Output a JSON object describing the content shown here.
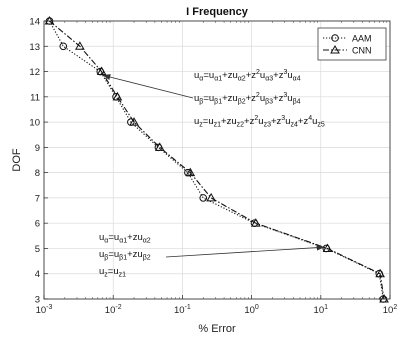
{
  "chart_data": {
    "type": "line",
    "title": "I Frequency",
    "xlabel": "% Error",
    "ylabel": "DOF",
    "xscale": "log",
    "xlim": [
      0.001,
      100
    ],
    "ylim": [
      3,
      14
    ],
    "x_ticks": [
      {
        "value": 0.001,
        "base": "10",
        "exp": "-3"
      },
      {
        "value": 0.01,
        "base": "10",
        "exp": "-2"
      },
      {
        "value": 0.1,
        "base": "10",
        "exp": "-1"
      },
      {
        "value": 1,
        "base": "10",
        "exp": "0"
      },
      {
        "value": 10,
        "base": "10",
        "exp": "1"
      },
      {
        "value": 100,
        "base": "10",
        "exp": "2"
      }
    ],
    "y_ticks": [
      "3",
      "4",
      "5",
      "6",
      "7",
      "8",
      "9",
      "10",
      "11",
      "12",
      "13",
      "14"
    ],
    "grid": true,
    "legend": "top-right",
    "series": [
      {
        "name": "AAM",
        "marker": "circle",
        "style": "dotted",
        "x": [
          0.0012,
          0.0019,
          0.0065,
          0.011,
          0.018,
          0.045,
          0.12,
          0.2,
          1.1,
          12,
          70,
          80
        ],
        "y": [
          14,
          13,
          12,
          11,
          10,
          9,
          8,
          7,
          6,
          5,
          4,
          3
        ]
      },
      {
        "name": "CNN",
        "marker": "triangle",
        "style": "dashdot",
        "x": [
          0.0012,
          0.0033,
          0.0068,
          0.0115,
          0.02,
          0.047,
          0.13,
          0.26,
          1.15,
          12.5,
          72,
          82
        ],
        "y": [
          14,
          13,
          12,
          11,
          10,
          9,
          8,
          7,
          6,
          5,
          4,
          3
        ]
      }
    ],
    "annotations": {
      "upper": [
        [
          [
            "u",
            ""
          ],
          [
            "α",
            "sub"
          ],
          [
            "=u",
            ""
          ],
          [
            "α1",
            "sub"
          ],
          [
            "+zu",
            ""
          ],
          [
            "α2",
            "sub"
          ],
          [
            "+z",
            ""
          ],
          [
            "2",
            "sup"
          ],
          [
            "u",
            ""
          ],
          [
            "α3",
            "sub"
          ],
          [
            "+z",
            ""
          ],
          [
            "3",
            "sup"
          ],
          [
            "u",
            ""
          ],
          [
            "α4",
            "sub"
          ]
        ],
        [
          [
            "u",
            ""
          ],
          [
            "β",
            "sub"
          ],
          [
            "=u",
            ""
          ],
          [
            "β1",
            "sub"
          ],
          [
            "+zu",
            ""
          ],
          [
            "β2",
            "sub"
          ],
          [
            "+z",
            ""
          ],
          [
            "2",
            "sup"
          ],
          [
            "u",
            ""
          ],
          [
            "β3",
            "sub"
          ],
          [
            "+z",
            ""
          ],
          [
            "3",
            "sup"
          ],
          [
            "u",
            ""
          ],
          [
            "β4",
            "sub"
          ]
        ],
        [
          [
            "u",
            ""
          ],
          [
            "z",
            "sub"
          ],
          [
            "=u",
            ""
          ],
          [
            "z1",
            "sub"
          ],
          [
            "+zu",
            ""
          ],
          [
            "z2",
            "sub"
          ],
          [
            "+z",
            ""
          ],
          [
            "2",
            "sup"
          ],
          [
            "u",
            ""
          ],
          [
            "z3",
            "sub"
          ],
          [
            "+z",
            ""
          ],
          [
            "3",
            "sup"
          ],
          [
            "u",
            ""
          ],
          [
            "z4",
            "sub"
          ],
          [
            "+z",
            ""
          ],
          [
            "4",
            "sup"
          ],
          [
            "u",
            ""
          ],
          [
            "z5",
            "sub"
          ]
        ]
      ],
      "lower": [
        [
          [
            "u",
            ""
          ],
          [
            "α",
            "sub"
          ],
          [
            "=u",
            ""
          ],
          [
            "α1",
            "sub"
          ],
          [
            "+zu",
            ""
          ],
          [
            "α2",
            "sub"
          ]
        ],
        [
          [
            "u",
            ""
          ],
          [
            "β",
            "sub"
          ],
          [
            "=u",
            ""
          ],
          [
            "β1",
            "sub"
          ],
          [
            "+zu",
            ""
          ],
          [
            "β2",
            "sub"
          ]
        ],
        [
          [
            "u",
            ""
          ],
          [
            "z",
            "sub"
          ],
          [
            "=u",
            ""
          ],
          [
            "z1",
            "sub"
          ]
        ]
      ],
      "upper_arrow_target": {
        "x": 0.0072,
        "y": 11.85
      },
      "lower_arrow_target": {
        "x": 11,
        "y": 5.05
      }
    }
  }
}
